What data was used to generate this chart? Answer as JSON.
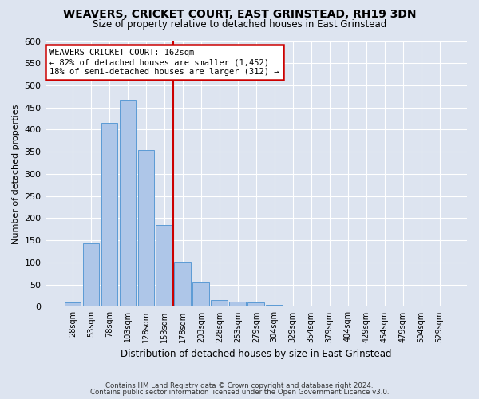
{
  "title": "WEAVERS, CRICKET COURT, EAST GRINSTEAD, RH19 3DN",
  "subtitle": "Size of property relative to detached houses in East Grinstead",
  "xlabel": "Distribution of detached houses by size in East Grinstead",
  "ylabel": "Number of detached properties",
  "categories": [
    "28sqm",
    "53sqm",
    "78sqm",
    "103sqm",
    "128sqm",
    "153sqm",
    "178sqm",
    "203sqm",
    "228sqm",
    "253sqm",
    "279sqm",
    "304sqm",
    "329sqm",
    "354sqm",
    "379sqm",
    "404sqm",
    "429sqm",
    "454sqm",
    "479sqm",
    "504sqm",
    "529sqm"
  ],
  "values": [
    9,
    143,
    415,
    468,
    354,
    184,
    101,
    54,
    15,
    12,
    9,
    4,
    3,
    2,
    2,
    1,
    0,
    0,
    0,
    0,
    3
  ],
  "bar_color": "#aec6e8",
  "bar_edge_color": "#5b9bd5",
  "vline_x": 5.5,
  "vline_color": "#cc0000",
  "annotation_title": "WEAVERS CRICKET COURT: 162sqm",
  "annotation_line1": "← 82% of detached houses are smaller (1,452)",
  "annotation_line2": "18% of semi-detached houses are larger (312) →",
  "annotation_box_color": "#cc0000",
  "ylim": [
    0,
    600
  ],
  "yticks": [
    0,
    50,
    100,
    150,
    200,
    250,
    300,
    350,
    400,
    450,
    500,
    550,
    600
  ],
  "footer1": "Contains HM Land Registry data © Crown copyright and database right 2024.",
  "footer2": "Contains public sector information licensed under the Open Government Licence v3.0.",
  "background_color": "#dde4f0",
  "plot_bg_color": "#dde4f0"
}
